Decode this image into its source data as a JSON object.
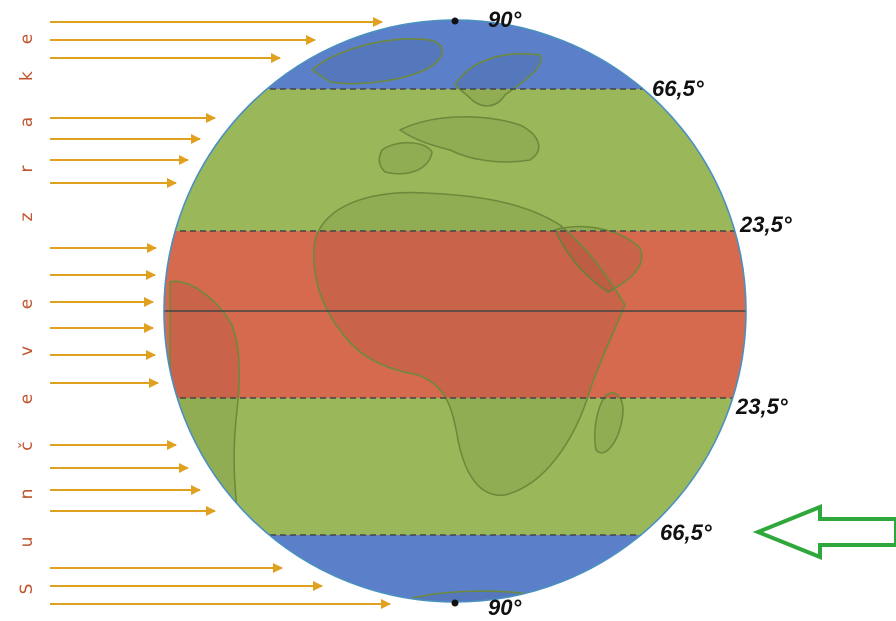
{
  "side_caption_letters": [
    "S",
    "u",
    "n",
    "č",
    "e",
    "v",
    "e",
    "z",
    "r",
    "a",
    "k",
    "e"
  ],
  "latitude_labels": {
    "north_pole": "90°",
    "arctic_circle": "66,5°",
    "tropic_north": "23,5°",
    "tropic_south": "23,5°",
    "antarctic_circle": "66,5°",
    "south_pole": "90°"
  },
  "zone_colors": {
    "polar": "#5b7fc8",
    "temperate": "#9ab85a",
    "tropical": "#d66a4e",
    "land_outline": "#6d8a3c",
    "ray_arrows": "#e0a020",
    "pointer_arrow": "#2ea83a",
    "caption_text": "#c0542c"
  },
  "icons": {
    "rays": "arrow-right-icon",
    "pointer": "arrow-left-icon"
  }
}
